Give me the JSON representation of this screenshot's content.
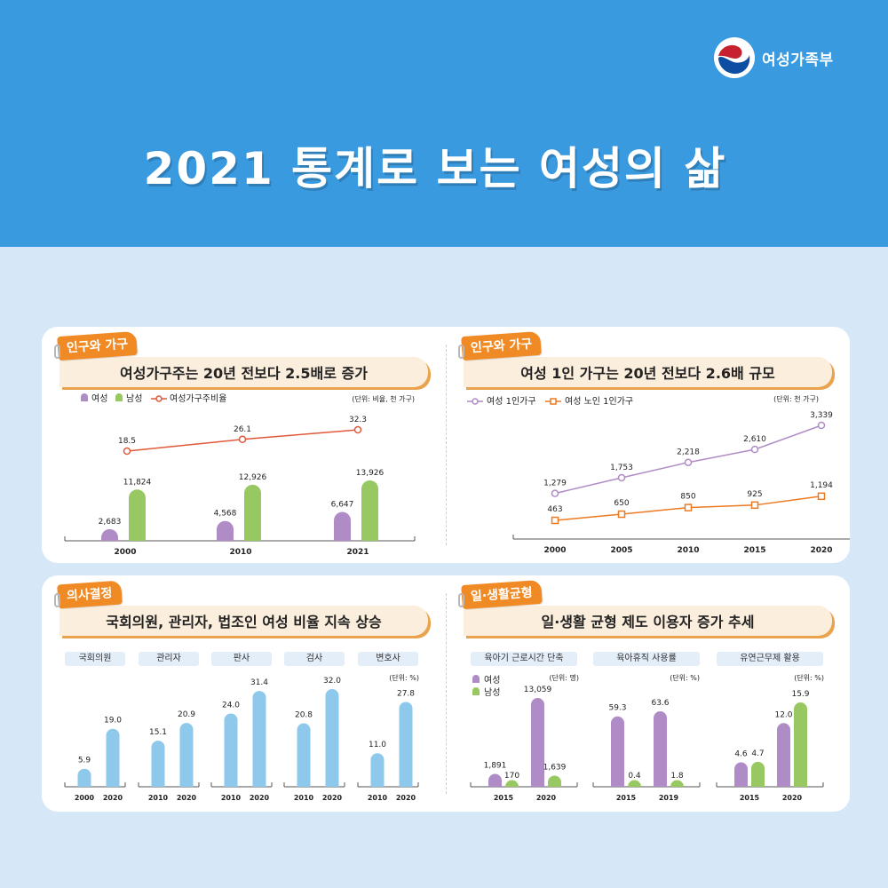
{
  "header": {
    "title": "2021 통계로 보는 여성의 삶",
    "logo_text": "여성가족부",
    "bg_color": "#3a9ae0"
  },
  "colors": {
    "female": "#b08cc6",
    "male": "#97c861",
    "ratio_line": "#e0583a",
    "female_1p": "#b08cc6",
    "elderly_1p": "#ec7a22",
    "representation": "#8ec9ec",
    "tag": "#f08a24"
  },
  "panels": {
    "p1": {
      "tag": "인구와 가구",
      "title": "여성가구주는 20년 전보다 2.5배로 증가",
      "unit": "(단위: 비율, 천 가구)",
      "legend": {
        "female": "여성",
        "male": "남성",
        "ratio": "여성가구주비율"
      }
    },
    "p2": {
      "tag": "인구와 가구",
      "title": "여성 1인 가구는 20년 전보다 2.6배 규모",
      "unit": "(단위: 천 가구)",
      "legend": {
        "s1": "여성 1인가구",
        "s2": "여성 노인 1인가구"
      }
    },
    "p3": {
      "tag": "의사결정",
      "title": "국회의원, 관리자, 법조인 여성 비율 지속 상승",
      "unit": "(단위: %)"
    },
    "p4": {
      "tag": "일·생활균형",
      "title": "일·생활 균형 제도 이용자 증가 추세",
      "unit_people": "(단위: 명)",
      "unit_pct1": "(단위: %)",
      "unit_pct2": "(단위: %)",
      "legend": {
        "female": "여성",
        "male": "남성"
      }
    }
  },
  "chart_data": [
    {
      "type": "bar",
      "categories": [
        "2000",
        "2010",
        "2021"
      ],
      "series": [
        {
          "name": "여성",
          "values": [
            2683,
            4568,
            6647
          ],
          "labels": [
            "2,683",
            "4,568",
            "6,647"
          ]
        },
        {
          "name": "남성",
          "values": [
            11824,
            12926,
            13926
          ],
          "labels": [
            "11,824",
            "12,926",
            "13,926"
          ]
        }
      ],
      "line_series": {
        "name": "여성가구주비율",
        "values": [
          18.5,
          26.1,
          32.3
        ],
        "labels": [
          "18.5",
          "26.1",
          "32.3"
        ]
      }
    },
    {
      "type": "line",
      "x": [
        "2000",
        "2005",
        "2010",
        "2015",
        "2020"
      ],
      "series": [
        {
          "name": "여성 1인가구",
          "values": [
            1279,
            1753,
            2218,
            2610,
            3339
          ],
          "labels": [
            "1,279",
            "1,753",
            "2,218",
            "2,610",
            "3,339"
          ]
        },
        {
          "name": "여성 노인 1인가구",
          "values": [
            463,
            650,
            850,
            925,
            1194
          ],
          "labels": [
            "463",
            "650",
            "850",
            "925",
            "1,194"
          ]
        }
      ]
    },
    {
      "type": "bar",
      "groups": [
        {
          "label": "국회의원",
          "categories": [
            "2000",
            "2020"
          ],
          "values": [
            5.9,
            19.0
          ],
          "labels": [
            "5.9",
            "19.0"
          ]
        },
        {
          "label": "관리자",
          "categories": [
            "2010",
            "2020"
          ],
          "values": [
            15.1,
            20.9
          ],
          "labels": [
            "15.1",
            "20.9"
          ]
        },
        {
          "label": "판사",
          "categories": [
            "2010",
            "2020"
          ],
          "values": [
            24.0,
            31.4
          ],
          "labels": [
            "24.0",
            "31.4"
          ]
        },
        {
          "label": "검사",
          "categories": [
            "2010",
            "2020"
          ],
          "values": [
            20.8,
            32.0
          ],
          "labels": [
            "20.8",
            "32.0"
          ]
        },
        {
          "label": "변호사",
          "categories": [
            "2010",
            "2020"
          ],
          "values": [
            11.0,
            27.8
          ],
          "labels": [
            "11.0",
            "27.8"
          ]
        }
      ]
    },
    {
      "type": "bar",
      "groups": [
        {
          "label": "육아기 근로시간 단축",
          "categories": [
            "2015",
            "2020"
          ],
          "female": [
            1891,
            13059
          ],
          "male": [
            170,
            1639
          ],
          "female_labels": [
            "1,891",
            "13,059"
          ],
          "male_labels": [
            "170",
            "1,639"
          ]
        },
        {
          "label": "육아휴직 사용률",
          "categories": [
            "2015",
            "2019"
          ],
          "female": [
            59.3,
            63.6
          ],
          "male": [
            0.4,
            1.8
          ],
          "female_labels": [
            "59.3",
            "63.6"
          ],
          "male_labels": [
            "0.4",
            "1.8"
          ]
        },
        {
          "label": "유연근무제 활용",
          "categories": [
            "2015",
            "2020"
          ],
          "female": [
            4.6,
            12.0
          ],
          "male": [
            4.7,
            15.9
          ],
          "female_labels": [
            "4.6",
            "12.0"
          ],
          "male_labels": [
            "4.7",
            "15.9"
          ]
        }
      ]
    }
  ]
}
